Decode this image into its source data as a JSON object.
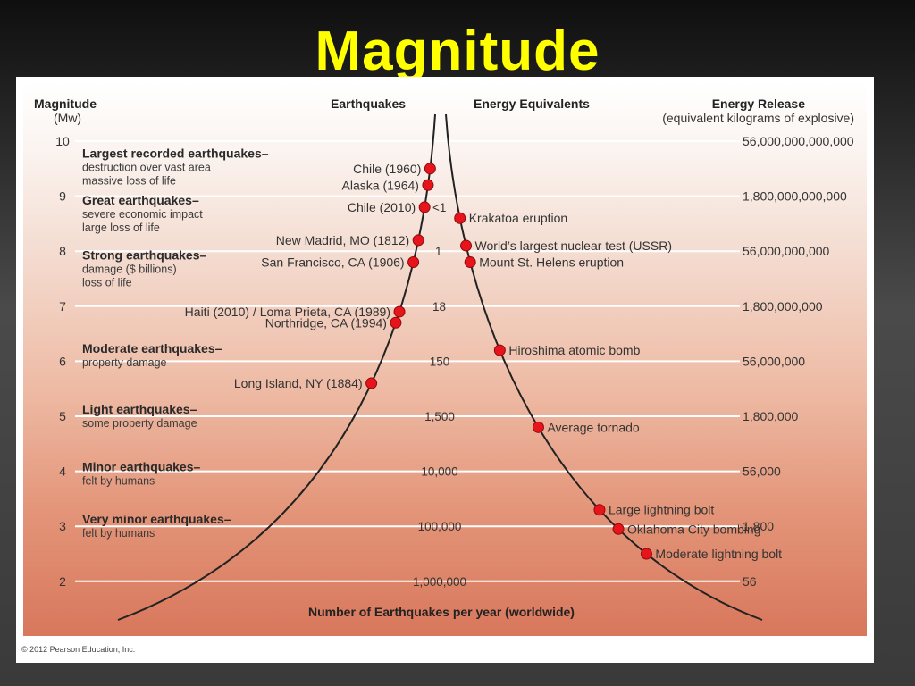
{
  "slide_title": "Magnitude",
  "headers": {
    "magnitude": "Magnitude",
    "magnitude_unit": "(Mw)",
    "earthquakes": "Earthquakes",
    "energy_equivalents": "Energy Equivalents",
    "energy_release": "Energy Release",
    "energy_release_unit": "(equivalent kilograms of explosive)"
  },
  "magnitude_ticks": [
    "10",
    "9",
    "8",
    "7",
    "6",
    "5",
    "4",
    "3",
    "2"
  ],
  "energy_release_values": [
    "56,000,000,000,000",
    "1,800,000,000,000",
    "56,000,000,000",
    "1,800,000,000",
    "56,000,000",
    "1,800,000",
    "56,000",
    "1,800",
    "56"
  ],
  "categories": [
    {
      "title": "Largest recorded earthquakes–",
      "desc": [
        "destruction over vast area",
        "massive loss of life"
      ]
    },
    {
      "title": "Great earthquakes–",
      "desc": [
        "severe economic impact",
        "large loss of life"
      ]
    },
    {
      "title": "Strong earthquakes–",
      "desc": [
        "damage ($ billions)",
        "loss of life"
      ]
    },
    {
      "title": "Moderate earthquakes–",
      "desc": [
        "property damage"
      ]
    },
    {
      "title": "Light earthquakes–",
      "desc": [
        "some property damage"
      ]
    },
    {
      "title": "Minor earthquakes–",
      "desc": [
        "felt by humans"
      ]
    },
    {
      "title": "Very minor earthquakes–",
      "desc": [
        "felt by humans"
      ]
    }
  ],
  "earthquakes": [
    {
      "label": "Chile (1960)",
      "magnitude": 9.5
    },
    {
      "label": "Alaska (1964)",
      "magnitude": 9.2
    },
    {
      "label": "Chile (2010)",
      "magnitude": 8.8
    },
    {
      "label": "New Madrid, MO (1812)",
      "magnitude": 8.2
    },
    {
      "label": "San Francisco, CA (1906)",
      "magnitude": 7.8
    },
    {
      "label": "Haiti (2010) / Loma Prieta, CA (1989)",
      "magnitude": 6.9
    },
    {
      "label": "Northridge, CA (1994)",
      "magnitude": 6.7
    },
    {
      "label": "Long Island, NY (1884)",
      "magnitude": 5.6
    }
  ],
  "energy_equivalents": [
    {
      "label": "Krakatoa eruption",
      "magnitude": 8.6
    },
    {
      "label": "World’s largest nuclear test (USSR)",
      "magnitude": 8.1
    },
    {
      "label": "Mount St. Helens eruption",
      "magnitude": 7.8
    },
    {
      "label": "Hiroshima atomic bomb",
      "magnitude": 6.2
    },
    {
      "label": "Average tornado",
      "magnitude": 4.8
    },
    {
      "label": "Large lightning bolt",
      "magnitude": 3.3
    },
    {
      "label": "Oklahoma City bombing",
      "magnitude": 2.95
    },
    {
      "label": "Moderate lightning bolt",
      "magnitude": 2.5
    }
  ],
  "yearly_counts": [
    {
      "label": "<1",
      "magnitude": 8.8
    },
    {
      "label": "1",
      "magnitude": 8.0
    },
    {
      "label": "18",
      "magnitude": 7.0
    },
    {
      "label": "150",
      "magnitude": 6.0
    },
    {
      "label": "1,500",
      "magnitude": 5.0
    },
    {
      "label": "10,000",
      "magnitude": 4.0
    },
    {
      "label": "100,000",
      "magnitude": 3.0
    },
    {
      "label": "1,000,000",
      "magnitude": 2.0
    }
  ],
  "x_axis_label": "Number of Earthquakes per year (worldwide)",
  "copyright": "© 2012 Pearson Education, Inc.",
  "colors": {
    "title": "#ffff00",
    "marker_fill": "#e8141c",
    "marker_stroke": "#8a0c0c",
    "curve": "#222222",
    "gridline": "#ffffff"
  }
}
